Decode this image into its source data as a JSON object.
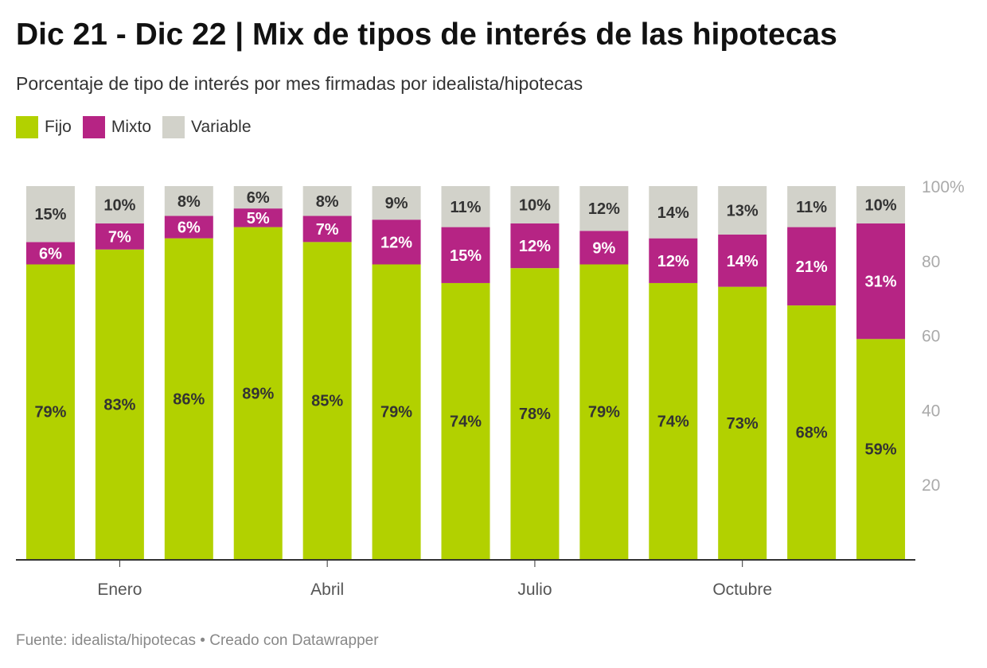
{
  "colors": {
    "fijo": "#b2d100",
    "mixto": "#b62484",
    "variable": "#d2d2ca",
    "label_dark": "#333333",
    "label_light": "#ffffff",
    "axis_text": "#aaaaaa",
    "month_text": "#555555",
    "baseline": "#333333"
  },
  "footer": "Fuente: idealista/hipotecas • Creado con Datawrapper",
  "chart_data": {
    "type": "bar",
    "stacked": true,
    "title": "Dic 21 - Dic 22 | Mix de tipos de interés de las hipotecas",
    "subtitle": "Porcentaje de tipo de interés por mes firmadas por idealista/hipotecas",
    "legend": [
      {
        "key": "fijo",
        "label": "Fijo"
      },
      {
        "key": "mixto",
        "label": "Mixto"
      },
      {
        "key": "variable",
        "label": "Variable"
      }
    ],
    "x_tick_labels": [
      {
        "index": 1,
        "label": "Enero"
      },
      {
        "index": 4,
        "label": "Abril"
      },
      {
        "index": 7,
        "label": "Julio"
      },
      {
        "index": 10,
        "label": "Octubre"
      }
    ],
    "y_ticks": [
      {
        "value": 20,
        "label": "20"
      },
      {
        "value": 40,
        "label": "40"
      },
      {
        "value": 60,
        "label": "60"
      },
      {
        "value": 80,
        "label": "80"
      },
      {
        "value": 100,
        "label": "100%"
      }
    ],
    "ylim": [
      0,
      100
    ],
    "series": [
      {
        "key": "fijo",
        "name": "Fijo",
        "values": [
          79,
          83,
          86,
          89,
          85,
          79,
          74,
          78,
          79,
          74,
          73,
          68,
          59
        ]
      },
      {
        "key": "mixto",
        "name": "Mixto",
        "values": [
          6,
          7,
          6,
          5,
          7,
          12,
          15,
          12,
          9,
          12,
          14,
          21,
          31
        ]
      },
      {
        "key": "variable",
        "name": "Variable",
        "values": [
          15,
          10,
          8,
          6,
          8,
          9,
          11,
          10,
          12,
          14,
          13,
          11,
          10
        ]
      }
    ],
    "labels": {
      "fijo": [
        "79%",
        "83%",
        "86%",
        "89%",
        "85%",
        "79%",
        "74%",
        "78%",
        "79%",
        "74%",
        "73%",
        "68%",
        "59%"
      ],
      "mixto": [
        "6%",
        "7%",
        "6%",
        "5%",
        "7%",
        "12%",
        "15%",
        "12%",
        "9%",
        "12%",
        "14%",
        "21%",
        "31%"
      ],
      "variable": [
        "15%",
        "10%",
        "8%",
        "6%",
        "8%",
        "9%",
        "11%",
        "10%",
        "12%",
        "14%",
        "13%",
        "11%",
        "10%"
      ]
    }
  }
}
